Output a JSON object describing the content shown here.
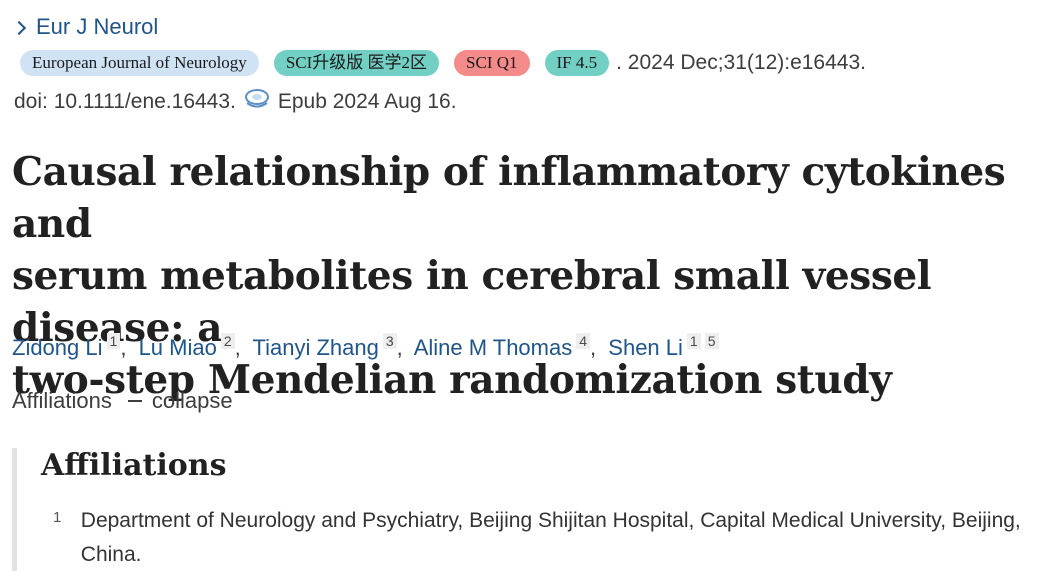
{
  "journal_link": "Eur J Neurol",
  "badges": {
    "journal": "European Journal of Neurology",
    "sci": "SCI升级版 医学2区",
    "q1": "SCI Q1",
    "impact": "IF 4.5"
  },
  "citation": ". 2024 Dec;31(12):e16443.",
  "doi": "doi: 10.1111/ene.16443.",
  "epub": "Epub 2024 Aug 16.",
  "title_lines": [
    "Causal relationship of inflammatory cytokines and",
    "serum metabolites in cerebral small vessel disease: a",
    "two-step Mendelian randomization study"
  ],
  "authors": [
    {
      "name": "Zidong Li",
      "affs": [
        "1"
      ]
    },
    {
      "name": "Lu Miao",
      "affs": [
        "2"
      ]
    },
    {
      "name": "Tianyi Zhang",
      "affs": [
        "3"
      ]
    },
    {
      "name": "Aline M Thomas",
      "affs": [
        "4"
      ]
    },
    {
      "name": "Shen Li",
      "affs": [
        "1",
        "5"
      ]
    }
  ],
  "affiliations_toggle": {
    "label": "Affiliations",
    "action": "collapse"
  },
  "affiliations_heading": "Affiliations",
  "affiliations": [
    {
      "num": "1",
      "text": "Department of Neurology and Psychiatry, Beijing Shijitan Hospital, Capital Medical University, Beijing, China."
    }
  ],
  "colors": {
    "link": "#20558a",
    "badge_blue": "#cfe3f4",
    "badge_teal": "#72cfc3",
    "badge_red": "#f48a8a"
  },
  "icons": {
    "chevron": "chevron-right-icon",
    "free_access": "free-access-icon"
  }
}
